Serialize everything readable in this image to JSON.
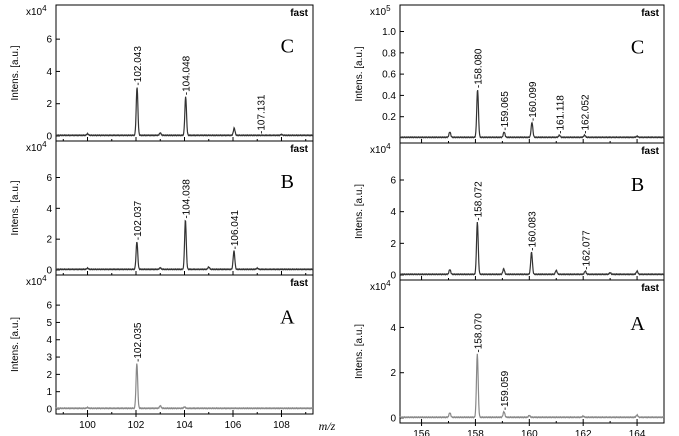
{
  "colors": {
    "dark_trace": "#333333",
    "light_trace": "#888888"
  },
  "x_unit": "m/z",
  "chart_data": [
    {
      "type": "line",
      "column": "left",
      "row": 0,
      "panel_letter": "C",
      "tag": "fast",
      "ylabel": "Intens. [a.u.]",
      "multiplier": "x10^4",
      "yticks": [
        "0",
        "2",
        "4",
        "6"
      ],
      "ylim": [
        0,
        7
      ],
      "xlim": [
        98.7,
        109.3
      ],
      "x_tick_labels": [],
      "trace_color": "dark",
      "peaks": [
        {
          "x": 102.043,
          "y": 3.0,
          "label": "102.043"
        },
        {
          "x": 104.048,
          "y": 2.4,
          "label": "104.048"
        },
        {
          "x": 107.131,
          "y": 0.0,
          "label": "107.131"
        }
      ],
      "minor_peaks": [
        {
          "x": 100.0,
          "y": 0.1
        },
        {
          "x": 103.0,
          "y": 0.15
        },
        {
          "x": 106.05,
          "y": 0.45
        },
        {
          "x": 108.0,
          "y": 0.05
        }
      ]
    },
    {
      "type": "line",
      "column": "left",
      "row": 1,
      "panel_letter": "B",
      "tag": "fast",
      "ylabel": "Intens. [a.u.]",
      "multiplier": "x10^4",
      "yticks": [
        "0",
        "2",
        "4",
        "6"
      ],
      "ylim": [
        0,
        7.2
      ],
      "xlim": [
        98.7,
        109.3
      ],
      "x_tick_labels": [],
      "trace_color": "dark",
      "peaks": [
        {
          "x": 102.037,
          "y": 1.8,
          "label": "102.037"
        },
        {
          "x": 104.038,
          "y": 3.2,
          "label": "104.038"
        },
        {
          "x": 106.041,
          "y": 1.2,
          "label": "106.041"
        }
      ],
      "minor_peaks": [
        {
          "x": 100.0,
          "y": 0.08
        },
        {
          "x": 103.0,
          "y": 0.1
        },
        {
          "x": 105.0,
          "y": 0.15
        },
        {
          "x": 107.0,
          "y": 0.08
        }
      ]
    },
    {
      "type": "line",
      "column": "left",
      "row": 2,
      "panel_letter": "A",
      "tag": "fast",
      "ylabel": "Intens. [a.u.]",
      "multiplier": "x10^4",
      "yticks": [
        "0",
        "1",
        "2",
        "3",
        "4",
        "5",
        "6"
      ],
      "ylim": [
        0,
        6.7
      ],
      "xlim": [
        98.7,
        109.3
      ],
      "x_tick_labels": [
        "100",
        "102",
        "104",
        "106",
        "108"
      ],
      "trace_color": "light",
      "peaks": [
        {
          "x": 102.035,
          "y": 2.6,
          "label": "102.035"
        }
      ],
      "minor_peaks": [
        {
          "x": 100.0,
          "y": 0.05
        },
        {
          "x": 103.0,
          "y": 0.15
        },
        {
          "x": 104.0,
          "y": 0.08
        }
      ]
    },
    {
      "type": "line",
      "column": "right",
      "row": 0,
      "panel_letter": "C",
      "tag": "fast",
      "ylabel": "Intens. [a.u.]",
      "multiplier": "x10^5",
      "yticks": [
        "0.2",
        "0.4",
        "0.6",
        "0.8",
        "1.0"
      ],
      "ylim": [
        0,
        1.08
      ],
      "xlim": [
        155.2,
        165.0
      ],
      "x_tick_labels": [],
      "trace_color": "dark",
      "peaks": [
        {
          "x": 158.08,
          "y": 0.45,
          "label": "158.080"
        },
        {
          "x": 159.065,
          "y": 0.05,
          "label": "159.065"
        },
        {
          "x": 160.099,
          "y": 0.14,
          "label": "160.099"
        },
        {
          "x": 161.118,
          "y": 0.02,
          "label": "161.118"
        },
        {
          "x": 162.052,
          "y": 0.02,
          "label": "162.052"
        }
      ],
      "minor_peaks": [
        {
          "x": 157.05,
          "y": 0.05
        },
        {
          "x": 164.0,
          "y": 0.01
        }
      ]
    },
    {
      "type": "line",
      "column": "right",
      "row": 1,
      "panel_letter": "B",
      "tag": "fast",
      "ylabel": "Intens. [a.u.]",
      "multiplier": "x10^4",
      "yticks": [
        "0",
        "2",
        "4",
        "6"
      ],
      "ylim": [
        0,
        7.2
      ],
      "xlim": [
        155.2,
        165.0
      ],
      "x_tick_labels": [],
      "trace_color": "dark",
      "peaks": [
        {
          "x": 158.072,
          "y": 3.3,
          "label": "158.072"
        },
        {
          "x": 160.083,
          "y": 1.4,
          "label": "160.083"
        },
        {
          "x": 162.077,
          "y": 0.2,
          "label": "162.077"
        }
      ],
      "minor_peaks": [
        {
          "x": 157.05,
          "y": 0.3
        },
        {
          "x": 159.05,
          "y": 0.35
        },
        {
          "x": 161.0,
          "y": 0.25
        },
        {
          "x": 163.0,
          "y": 0.1
        },
        {
          "x": 164.0,
          "y": 0.2
        }
      ]
    },
    {
      "type": "line",
      "column": "right",
      "row": 2,
      "panel_letter": "A",
      "tag": "fast",
      "ylabel": "Intens. [a.u.]",
      "multiplier": "x10^4",
      "yticks": [
        "0",
        "2",
        "4"
      ],
      "ylim": [
        0,
        5.3
      ],
      "xlim": [
        155.2,
        165.0
      ],
      "x_tick_labels": [
        "156",
        "158",
        "160",
        "162",
        "164"
      ],
      "trace_color": "light",
      "peaks": [
        {
          "x": 158.07,
          "y": 2.8,
          "label": "158.070"
        },
        {
          "x": 159.059,
          "y": 0.25,
          "label": "159.059"
        }
      ],
      "minor_peaks": [
        {
          "x": 157.05,
          "y": 0.2
        },
        {
          "x": 160.0,
          "y": 0.08
        },
        {
          "x": 162.0,
          "y": 0.05
        },
        {
          "x": 164.0,
          "y": 0.1
        }
      ]
    }
  ]
}
